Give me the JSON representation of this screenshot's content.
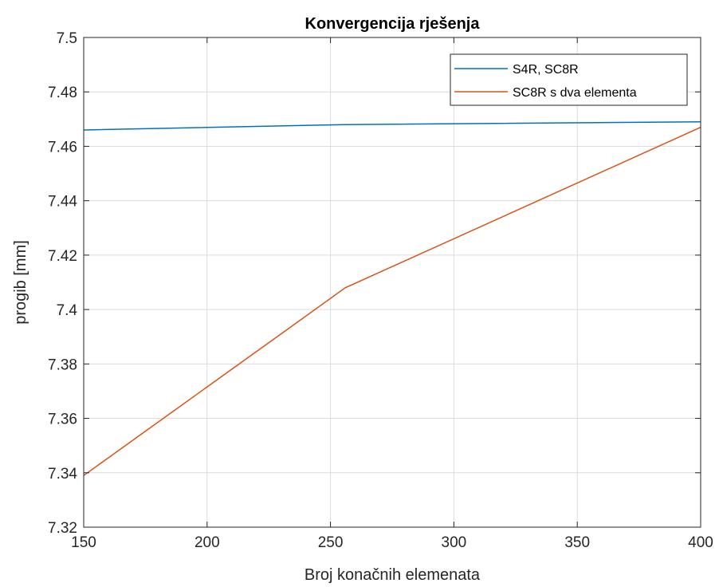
{
  "chart_data": {
    "type": "line",
    "title": "Konvergencija rješenja",
    "xlabel": "Broj konačnih elemenata",
    "ylabel": "progib [mm]",
    "xlim": [
      150,
      400
    ],
    "ylim": [
      7.32,
      7.5
    ],
    "xticks": [
      "150",
      "200",
      "250",
      "300",
      "350",
      "400"
    ],
    "yticks": [
      "7.32",
      "7.34",
      "7.36",
      "7.38",
      "7.4",
      "7.42",
      "7.44",
      "7.46",
      "7.48",
      "7.5"
    ],
    "grid": true,
    "legend_position": "top-right",
    "series": [
      {
        "name": "S4R, SC8R",
        "color": "#0072BD",
        "x": [
          150,
          256,
          400
        ],
        "y": [
          7.466,
          7.468,
          7.469
        ]
      },
      {
        "name": "SC8R s dva elementa",
        "color": "#D95319",
        "x": [
          150,
          256,
          400
        ],
        "y": [
          7.339,
          7.408,
          7.467
        ]
      }
    ]
  }
}
